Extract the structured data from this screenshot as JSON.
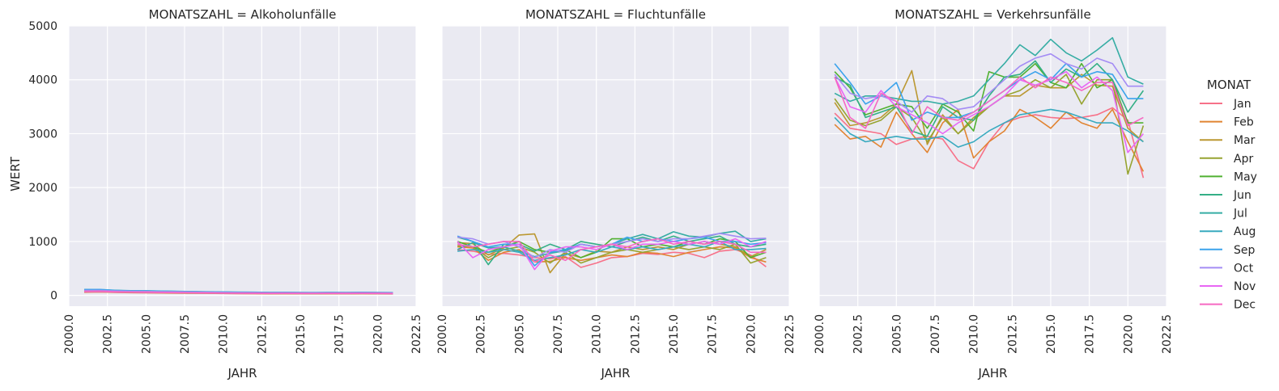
{
  "chart_data": {
    "type": "line",
    "facet_variable": "MONATSZAHL",
    "facet_title_separator": " = ",
    "xlabel": "JAHR",
    "ylabel": "WERT",
    "xlim": [
      2000,
      2022.5
    ],
    "ylim": [
      -200,
      5000
    ],
    "x_ticks": [
      "2000.0",
      "2002.5",
      "2005.0",
      "2007.5",
      "2010.0",
      "2012.5",
      "2015.0",
      "2017.5",
      "2020.0",
      "2022.5"
    ],
    "y_ticks": [
      "0",
      "1000",
      "2000",
      "3000",
      "4000",
      "5000"
    ],
    "grid": true,
    "background_color": "#EAEAF2",
    "legend": {
      "title": "MONAT",
      "placement": "right"
    },
    "x": [
      2001,
      2002,
      2003,
      2004,
      2005,
      2006,
      2007,
      2008,
      2009,
      2010,
      2011,
      2012,
      2013,
      2014,
      2015,
      2016,
      2017,
      2018,
      2019,
      2020,
      2021
    ],
    "months": [
      "Jan",
      "Feb",
      "Mar",
      "Apr",
      "May",
      "Jun",
      "Jul",
      "Aug",
      "Sep",
      "Oct",
      "Nov",
      "Dec"
    ],
    "colors": [
      "#f77189",
      "#e18432",
      "#bb9832",
      "#97a431",
      "#50b131",
      "#34af86",
      "#36ada4",
      "#38aabf",
      "#3ba3ec",
      "#a48cf4",
      "#e866f4",
      "#f668c2"
    ],
    "panels": [
      {
        "category": "Alkoholunfälle",
        "series": [
          {
            "name": "Jan",
            "values": [
              58,
              62,
              55,
              50,
              48,
              45,
              42,
              40,
              38,
              35,
              33,
              32,
              30,
              31,
              30,
              29,
              31,
              30,
              32,
              30,
              28
            ]
          },
          {
            "name": "Feb",
            "values": [
              60,
              65,
              58,
              52,
              50,
              47,
              44,
              42,
              40,
              37,
              35,
              34,
              32,
              33,
              32,
              31,
              33,
              32,
              34,
              32,
              30
            ]
          },
          {
            "name": "Mar",
            "values": [
              68,
              70,
              62,
              57,
              54,
              51,
              48,
              46,
              43,
              40,
              38,
              37,
              35,
              36,
              34,
              33,
              35,
              34,
              36,
              34,
              32
            ]
          },
          {
            "name": "Apr",
            "values": [
              72,
              75,
              66,
              60,
              58,
              55,
              52,
              49,
              46,
              43,
              41,
              40,
              38,
              39,
              37,
              36,
              38,
              37,
              39,
              37,
              35
            ]
          },
          {
            "name": "May",
            "values": [
              85,
              88,
              78,
              72,
              70,
              66,
              62,
              58,
              55,
              52,
              49,
              48,
              45,
              46,
              44,
              43,
              45,
              44,
              46,
              44,
              42
            ]
          },
          {
            "name": "Jun",
            "values": [
              95,
              98,
              86,
              80,
              78,
              73,
              69,
              65,
              61,
              58,
              55,
              54,
              50,
              51,
              49,
              48,
              50,
              49,
              51,
              49,
              47
            ]
          },
          {
            "name": "Jul",
            "values": [
              100,
              104,
              92,
              85,
              83,
              78,
              73,
              69,
              65,
              62,
              58,
              57,
              53,
              54,
              52,
              51,
              53,
              52,
              54,
              52,
              50
            ]
          },
          {
            "name": "Aug",
            "values": [
              110,
              108,
              95,
              88,
              86,
              80,
              75,
              71,
              67,
              64,
              60,
              59,
              55,
              56,
              54,
              53,
              55,
              54,
              56,
              54,
              52
            ]
          },
          {
            "name": "Sep",
            "values": [
              105,
              110,
              90,
              84,
              82,
              77,
              72,
              68,
              64,
              61,
              57,
              56,
              52,
              53,
              51,
              50,
              52,
              51,
              53,
              51,
              49
            ]
          },
          {
            "name": "Oct",
            "values": [
              90,
              92,
              82,
              76,
              74,
              70,
              66,
              62,
              58,
              55,
              52,
              51,
              48,
              49,
              47,
              46,
              48,
              47,
              49,
              47,
              45
            ]
          },
          {
            "name": "Nov",
            "values": [
              70,
              72,
              64,
              59,
              57,
              54,
              50,
              48,
              45,
              42,
              40,
              39,
              37,
              38,
              36,
              35,
              37,
              36,
              38,
              36,
              34
            ]
          },
          {
            "name": "Dec",
            "values": [
              75,
              78,
              68,
              62,
              60,
              56,
              53,
              50,
              47,
              44,
              42,
              41,
              39,
              40,
              38,
              37,
              39,
              38,
              40,
              38,
              36
            ]
          }
        ]
      },
      {
        "category": "Fluchtunfälle",
        "series": [
          {
            "name": "Jan",
            "values": [
              850,
              820,
              760,
              780,
              750,
              700,
              680,
              720,
              520,
              600,
              700,
              720,
              780,
              760,
              800,
              780,
              700,
              820,
              850,
              750,
              530
            ]
          },
          {
            "name": "Feb",
            "values": [
              900,
              880,
              650,
              800,
              850,
              620,
              630,
              700,
              650,
              700,
              750,
              720,
              800,
              780,
              720,
              800,
              850,
              900,
              880,
              700,
              620
            ]
          },
          {
            "name": "Mar",
            "values": [
              980,
              960,
              750,
              880,
              1120,
              1140,
              420,
              780,
              700,
              820,
              800,
              900,
              850,
              900,
              850,
              950,
              1000,
              950,
              900,
              720,
              850
            ]
          },
          {
            "name": "Apr",
            "values": [
              920,
              900,
              700,
              850,
              900,
              800,
              600,
              800,
              600,
              700,
              800,
              850,
              800,
              850,
              900,
              850,
              900,
              850,
              950,
              600,
              700
            ]
          },
          {
            "name": "May",
            "values": [
              1000,
              900,
              800,
              900,
              1000,
              850,
              800,
              850,
              700,
              800,
              1050,
              1050,
              900,
              950,
              900,
              1000,
              950,
              1050,
              1000,
              700,
              800
            ]
          },
          {
            "name": "Jun",
            "values": [
              1080,
              1000,
              570,
              950,
              950,
              820,
              950,
              850,
              1000,
              950,
              900,
              1000,
              1080,
              1000,
              1100,
              1000,
              1050,
              1100,
              950,
              900,
              950
            ]
          },
          {
            "name": "Jul",
            "values": [
              850,
              980,
              880,
              900,
              820,
              720,
              780,
              830,
              950,
              900,
              950,
              1050,
              1130,
              1050,
              1180,
              1100,
              1080,
              1150,
              1190,
              1000,
              1050
            ]
          },
          {
            "name": "Aug",
            "values": [
              820,
              850,
              800,
              850,
              800,
              650,
              700,
              750,
              850,
              800,
              900,
              850,
              900,
              850,
              900,
              950,
              900,
              1000,
              850,
              850,
              870
            ]
          },
          {
            "name": "Sep",
            "values": [
              1100,
              1000,
              900,
              950,
              950,
              550,
              800,
              850,
              950,
              900,
              950,
              1080,
              1000,
              1050,
              1000,
              1050,
              1080,
              1000,
              1000,
              950,
              980
            ]
          },
          {
            "name": "Oct",
            "values": [
              1080,
              1050,
              950,
              1000,
              900,
              700,
              850,
              800,
              950,
              900,
              950,
              1000,
              1050,
              1000,
              1050,
              1050,
              1100,
              1150,
              1100,
              1050,
              1060
            ]
          },
          {
            "name": "Nov",
            "values": [
              1000,
              700,
              850,
              900,
              950,
              480,
              820,
              900,
              900,
              850,
              950,
              850,
              950,
              950,
              1000,
              950,
              1000,
              950,
              1050,
              900,
              1000
            ]
          },
          {
            "name": "Dec",
            "values": [
              950,
              900,
              950,
              1000,
              1000,
              620,
              750,
              650,
              850,
              900,
              950,
              900,
              1000,
              1050,
              950,
              1000,
              950,
              1000,
              950,
              800,
              800
            ]
          }
        ]
      },
      {
        "category": "Verkehrsunfälle",
        "series": [
          {
            "name": "Jan",
            "values": [
              3380,
              3100,
              3050,
              3000,
              2800,
              2900,
              2950,
              2900,
              2500,
              2350,
              2850,
              3200,
              3300,
              3350,
              3300,
              3280,
              3300,
              3350,
              3480,
              3250,
              2180
            ]
          },
          {
            "name": "Feb",
            "values": [
              3170,
              2900,
              2950,
              2750,
              3400,
              3000,
              2650,
              3200,
              3450,
              2550,
              2850,
              3050,
              3450,
              3300,
              3100,
              3400,
              3200,
              3100,
              3450,
              2850,
              2300
            ]
          },
          {
            "name": "Mar",
            "values": [
              3580,
              3150,
              3200,
              3300,
              3550,
              4170,
              2800,
              3350,
              3000,
              3300,
              3500,
              3700,
              3700,
              3900,
              3850,
              3850,
              4100,
              3900,
              3880,
              3100,
              2850
            ]
          },
          {
            "name": "Apr",
            "values": [
              3650,
              3250,
              3150,
              3250,
              3500,
              3300,
              2850,
              3300,
              3000,
              3250,
              3500,
              3700,
              3800,
              4000,
              3850,
              4100,
              3550,
              4000,
              4000,
              2250,
              3150
            ]
          },
          {
            "name": "May",
            "values": [
              4150,
              3850,
              3350,
              3450,
              3550,
              3500,
              3100,
              3550,
              3400,
              3050,
              4150,
              4050,
              4050,
              4300,
              3950,
              3850,
              4300,
              3850,
              4000,
              3200,
              3200
            ]
          },
          {
            "name": "Jun",
            "values": [
              4050,
              3900,
              3300,
              3400,
              3500,
              3050,
              2950,
              3500,
              3300,
              3250,
              3700,
              4050,
              4100,
              4350,
              3950,
              4200,
              4050,
              4300,
              4000,
              3400,
              3800
            ]
          },
          {
            "name": "Jul",
            "values": [
              3750,
              3600,
              3700,
              3700,
              3650,
              3600,
              3600,
              3550,
              3600,
              3700,
              4000,
              4300,
              4650,
              4450,
              4750,
              4500,
              4350,
              4550,
              4780,
              4050,
              3920
            ]
          },
          {
            "name": "Aug",
            "values": [
              3300,
              3000,
              2850,
              2900,
              2950,
              2900,
              2900,
              2950,
              2750,
              2850,
              3050,
              3200,
              3350,
              3400,
              3450,
              3400,
              3300,
              3200,
              3200,
              3050,
              2850
            ]
          },
          {
            "name": "Sep",
            "values": [
              4300,
              3950,
              3550,
              3700,
              3950,
              3250,
              3400,
              3300,
              3300,
              3400,
              3600,
              3800,
              4000,
              4150,
              4000,
              4300,
              4050,
              4150,
              4100,
              3650,
              3650
            ]
          },
          {
            "name": "Oct",
            "values": [
              4100,
              3750,
              3650,
              3700,
              3600,
              3400,
              3700,
              3650,
              3450,
              3500,
              3750,
              4000,
              4250,
              4400,
              4480,
              4300,
              4200,
              4400,
              4300,
              3880,
              3880
            ]
          },
          {
            "name": "Nov",
            "values": [
              4050,
              3500,
              3400,
              3800,
              3500,
              3350,
              3200,
              3000,
              3200,
              3350,
              3500,
              3700,
              4000,
              3900,
              4000,
              4150,
              3850,
              4050,
              3800,
              2650,
              3000
            ]
          },
          {
            "name": "Dec",
            "values": [
              4050,
              3300,
              3100,
              3750,
              3600,
              3000,
              3500,
              3300,
              3250,
              3400,
              3600,
              3800,
              4050,
              3850,
              4050,
              3950,
              3800,
              3950,
              3950,
              3150,
              3300
            ]
          }
        ]
      }
    ]
  }
}
